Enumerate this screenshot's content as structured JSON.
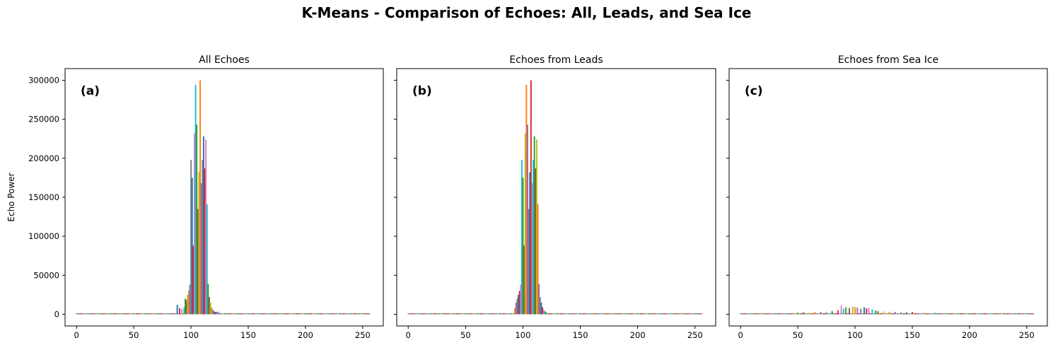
{
  "figure": {
    "title": "K-Means - Comparison of Echoes: All, Leads, and Sea Ice",
    "ylabel": "Echo Power"
  },
  "colors": [
    "#1f77b4",
    "#ff7f0e",
    "#2ca02c",
    "#d62728",
    "#9467bd",
    "#8c564b",
    "#e377c2",
    "#7f7f7f",
    "#bcbd22",
    "#17becf"
  ],
  "chart_data": [
    {
      "type": "bar",
      "title": "All Echoes",
      "panel_label": "(a)",
      "xlabel": "",
      "ylabel": "Echo Power",
      "xlim": [
        -10,
        268
      ],
      "ylim": [
        -15000,
        315000
      ],
      "xticks": [
        0,
        50,
        100,
        150,
        200,
        250
      ],
      "yticks": [
        0,
        50000,
        100000,
        150000,
        200000,
        250000,
        300000
      ],
      "grid": false,
      "x": [
        88,
        90,
        92,
        94,
        95,
        96,
        97,
        98,
        99,
        100,
        101,
        102,
        103,
        104,
        105,
        106,
        107,
        108,
        109,
        110,
        111,
        112,
        113,
        114,
        115,
        116,
        117,
        118,
        119,
        120,
        121,
        122,
        123,
        124
      ],
      "values": [
        12000,
        8000,
        7000,
        9000,
        20000,
        18000,
        25000,
        30000,
        38000,
        198000,
        175000,
        88000,
        232000,
        294000,
        243000,
        135000,
        182000,
        300000,
        168000,
        198000,
        228000,
        187000,
        224000,
        141000,
        39000,
        22000,
        15000,
        9000,
        6000,
        4000,
        3000,
        3000,
        3000,
        3000
      ],
      "baseline_range": [
        0,
        256
      ],
      "baseline_level": 1000
    },
    {
      "type": "bar",
      "title": "Echoes from Leads",
      "panel_label": "(b)",
      "xlabel": "",
      "ylabel": "",
      "xlim": [
        -10,
        268
      ],
      "ylim": [
        -15000,
        315000
      ],
      "xticks": [
        0,
        50,
        100,
        150,
        200,
        250
      ],
      "yticks": [
        0,
        50000,
        100000,
        150000,
        200000,
        250000,
        300000
      ],
      "grid": false,
      "x": [
        93,
        94,
        95,
        96,
        97,
        98,
        99,
        100,
        101,
        102,
        103,
        104,
        105,
        106,
        107,
        108,
        109,
        110,
        111,
        112,
        113,
        114,
        115,
        116,
        117,
        118,
        119,
        120
      ],
      "values": [
        8000,
        15000,
        20000,
        25000,
        30000,
        38000,
        198000,
        175000,
        88000,
        232000,
        294000,
        243000,
        135000,
        182000,
        300000,
        168000,
        198000,
        228000,
        187000,
        224000,
        141000,
        39000,
        22000,
        15000,
        9000,
        6000,
        4000,
        3000
      ],
      "baseline_range": [
        0,
        256
      ],
      "baseline_level": 500
    },
    {
      "type": "bar",
      "title": "Echoes from Sea Ice",
      "panel_label": "(c)",
      "xlabel": "",
      "ylabel": "",
      "xlim": [
        -10,
        268
      ],
      "ylim": [
        -15000,
        315000
      ],
      "xticks": [
        0,
        50,
        100,
        150,
        200,
        250
      ],
      "yticks": [
        0,
        50000,
        100000,
        150000,
        200000,
        250000,
        300000
      ],
      "grid": false,
      "x": [
        50,
        55,
        60,
        65,
        70,
        75,
        80,
        85,
        88,
        90,
        92,
        95,
        98,
        100,
        102,
        105,
        108,
        110,
        112,
        115,
        118,
        120,
        125,
        130,
        135,
        140,
        145,
        150,
        160,
        170
      ],
      "values": [
        2000,
        2500,
        2000,
        3000,
        3000,
        2500,
        4000,
        5000,
        11000,
        7000,
        9000,
        8000,
        10000,
        9000,
        8500,
        7000,
        9000,
        7500,
        8000,
        6000,
        5000,
        4000,
        3500,
        3000,
        3000,
        2500,
        2500,
        3000,
        2000,
        2000
      ],
      "baseline_range": [
        0,
        256
      ],
      "baseline_level": 1000
    }
  ]
}
